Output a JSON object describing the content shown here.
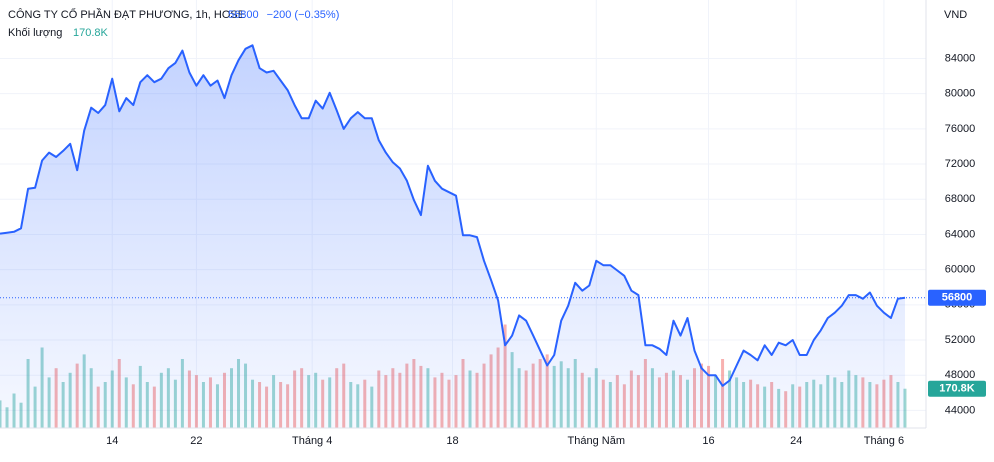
{
  "chart_data": {
    "type": "line",
    "title": "CÔNG TY CỔ PHẦN ĐẠT PHƯƠNG, 1h, HOSE",
    "last_price": 56800,
    "change": "−200 (−0.35%)",
    "volume_title": "Khối lượng",
    "currency": "VND",
    "color": "#2962ff",
    "up_color": "#26a69a",
    "down_color": "#ef5350",
    "grid": true,
    "ylim": [
      42000,
      88600
    ],
    "yticks": [
      44000,
      48000,
      52000,
      56000,
      60000,
      64000,
      68000,
      72000,
      76000,
      80000,
      84000
    ],
    "xlim": [
      0,
      132
    ],
    "xticks": [
      {
        "value": 16,
        "label": "14"
      },
      {
        "value": 28,
        "label": "22"
      },
      {
        "value": 44.5,
        "label": "Tháng 4"
      },
      {
        "value": 64.5,
        "label": "18"
      },
      {
        "value": 85,
        "label": "Tháng Năm"
      },
      {
        "value": 101,
        "label": "16"
      },
      {
        "value": 113.5,
        "label": "24"
      },
      {
        "value": 126,
        "label": "Tháng 6"
      }
    ],
    "values": [
      64100,
      64200,
      64300,
      64700,
      69200,
      69300,
      72400,
      73300,
      72800,
      73500,
      74300,
      71300,
      75800,
      78400,
      77800,
      78700,
      81700,
      78000,
      79500,
      78700,
      81300,
      82100,
      81300,
      81700,
      82900,
      83500,
      84900,
      82400,
      80900,
      82100,
      80900,
      81500,
      79500,
      82100,
      83800,
      85100,
      85500,
      82900,
      82400,
      82600,
      81500,
      80400,
      78700,
      77200,
      77200,
      79200,
      78300,
      80100,
      78100,
      76000,
      77200,
      77900,
      77200,
      77200,
      74700,
      73300,
      72200,
      71500,
      70100,
      67900,
      66200,
      71800,
      70100,
      69200,
      68800,
      68400,
      63900,
      63900,
      63700,
      61000,
      58800,
      56500,
      51400,
      52500,
      54800,
      54200,
      52500,
      50800,
      49100,
      50300,
      54200,
      55900,
      58500,
      57600,
      58200,
      61000,
      60500,
      60500,
      59900,
      59300,
      57600,
      57100,
      51400,
      51400,
      51000,
      50300,
      54200,
      52500,
      54500,
      50800,
      48800,
      48000,
      48000,
      46800,
      47400,
      49100,
      50800,
      50300,
      49700,
      51400,
      50300,
      51700,
      51400,
      52000,
      50300,
      50300,
      52000,
      53100,
      54500,
      55100,
      55900,
      57100,
      57100,
      56700,
      57400,
      55900,
      55100,
      54500,
      56700,
      56800
    ],
    "volume_ylim": [
      0,
      1000000
    ],
    "volume": [
      120000,
      90000,
      150000,
      110000,
      300000,
      180000,
      350000,
      220000,
      260000,
      200000,
      240000,
      280000,
      320000,
      260000,
      180000,
      200000,
      250000,
      300000,
      220000,
      190000,
      270000,
      200000,
      180000,
      240000,
      260000,
      210000,
      300000,
      250000,
      230000,
      200000,
      220000,
      190000,
      240000,
      260000,
      300000,
      280000,
      210000,
      200000,
      180000,
      230000,
      200000,
      190000,
      250000,
      260000,
      230000,
      240000,
      210000,
      220000,
      260000,
      280000,
      200000,
      190000,
      210000,
      180000,
      250000,
      230000,
      260000,
      240000,
      280000,
      300000,
      270000,
      260000,
      220000,
      240000,
      210000,
      230000,
      300000,
      250000,
      240000,
      280000,
      320000,
      350000,
      450000,
      330000,
      260000,
      250000,
      280000,
      300000,
      320000,
      270000,
      290000,
      260000,
      300000,
      240000,
      220000,
      260000,
      210000,
      200000,
      230000,
      190000,
      250000,
      230000,
      300000,
      260000,
      220000,
      240000,
      250000,
      230000,
      210000,
      260000,
      280000,
      270000,
      230000,
      300000,
      250000,
      220000,
      200000,
      210000,
      190000,
      180000,
      200000,
      170000,
      160000,
      190000,
      180000,
      200000,
      210000,
      190000,
      230000,
      220000,
      200000,
      250000,
      230000,
      220000,
      200000,
      190000,
      210000,
      230000,
      200000,
      170800
    ],
    "volume_value_labels": {
      "129": "170.8K"
    }
  }
}
